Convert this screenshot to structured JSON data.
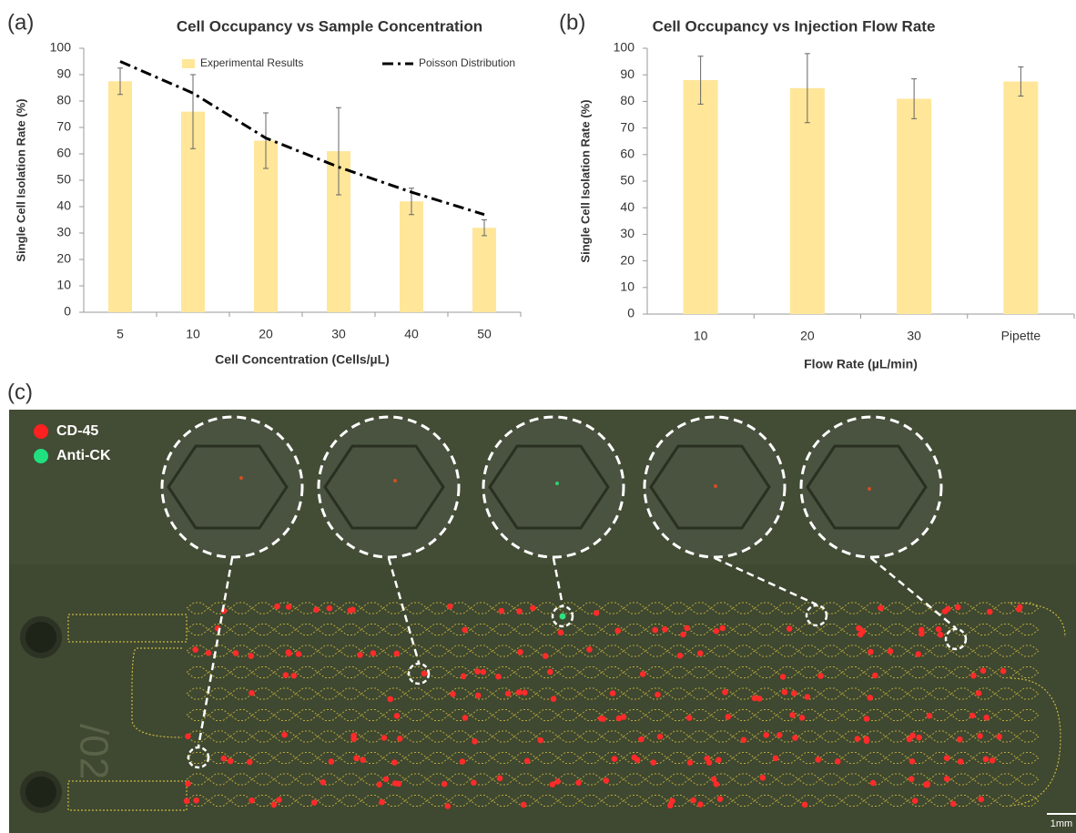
{
  "panels": [
    "(a)",
    "(b)",
    "(c)"
  ],
  "chart_data": [
    {
      "type": "bar",
      "title": "Cell Occupancy vs Sample Concentration",
      "x_label": "Cell Concentration (Cells/µL)",
      "y_label": "Single Cell Isolation Rate (%)",
      "categories": [
        "5",
        "10",
        "20",
        "30",
        "40",
        "50"
      ],
      "series": [
        {
          "name": "Experimental Results",
          "type": "bar",
          "color": "#ffe699",
          "values": [
            87.5,
            76,
            65,
            61,
            42,
            32
          ],
          "errors": [
            5,
            14,
            10.5,
            16.5,
            5,
            3
          ]
        },
        {
          "name": "Poisson Distribution",
          "type": "line",
          "color": "#000000",
          "style": "dash-dot",
          "values": [
            95,
            83,
            66,
            55,
            45.5,
            37
          ]
        }
      ],
      "ylim": [
        0,
        100
      ],
      "yticks": [
        0,
        10,
        20,
        30,
        40,
        50,
        60,
        70,
        80,
        90,
        100
      ],
      "legend": "top"
    },
    {
      "type": "bar",
      "title": "Cell Occupancy vs Injection Flow Rate",
      "x_label": "Flow Rate (µL/min)",
      "y_label": "Single Cell Isolation Rate (%)",
      "categories": [
        "10",
        "20",
        "30",
        "Pipette"
      ],
      "series": [
        {
          "type": "bar",
          "color": "#ffe699",
          "values": [
            88,
            85,
            81,
            87.5
          ],
          "errors": [
            9,
            13,
            7.5,
            5.5
          ]
        }
      ],
      "ylim": [
        0,
        100
      ],
      "yticks": [
        0,
        10,
        20,
        30,
        40,
        50,
        60,
        70,
        80,
        90,
        100
      ]
    }
  ],
  "image": {
    "legend": [
      {
        "label": "CD-45",
        "color": "#ff2020"
      },
      {
        "label": "Anti-CK",
        "color": "#20e080"
      }
    ],
    "scale_bar": "1mm"
  }
}
